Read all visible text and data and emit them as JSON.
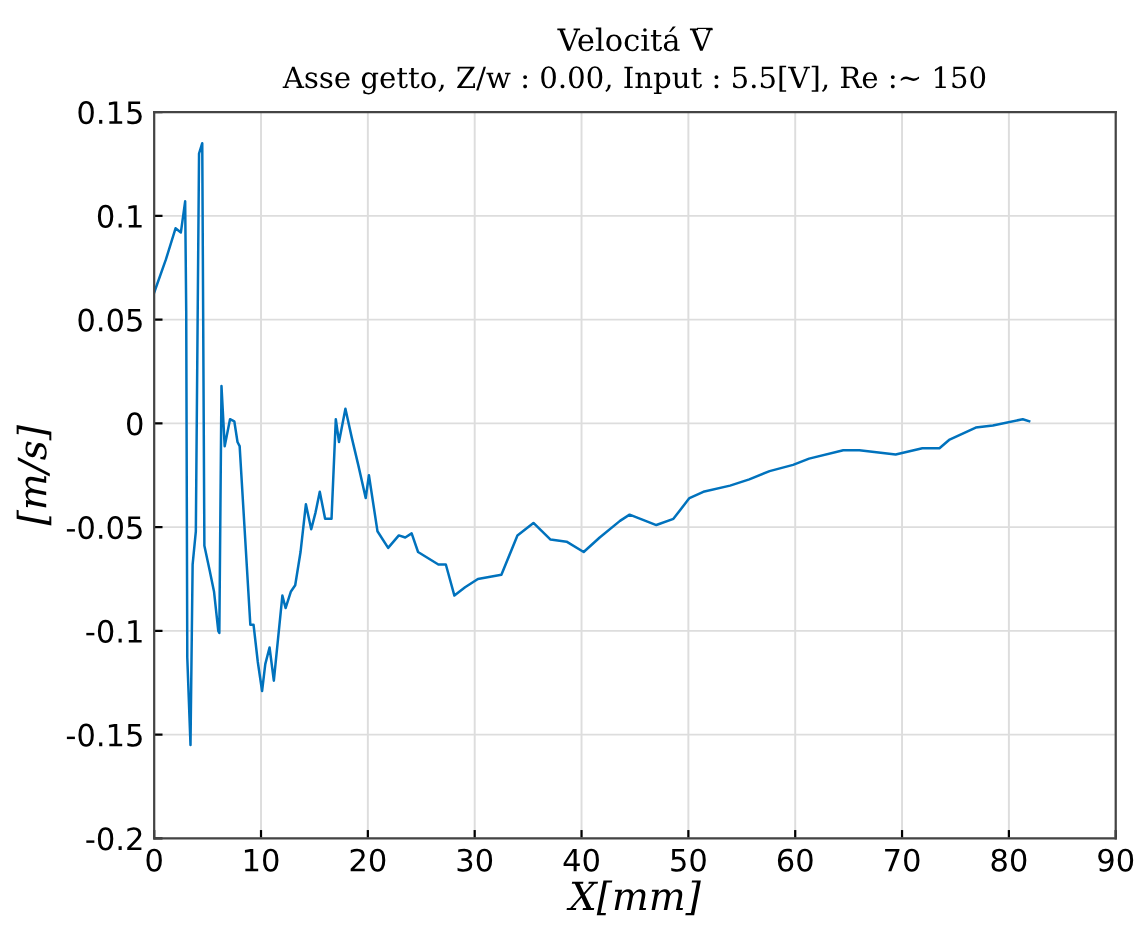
{
  "chart_data": {
    "type": "line",
    "title": "Velocitá V̅",
    "subtitle": "Asse getto, Z/w : 0.00, Input : 5.5[V], Re :∼ 150",
    "xlabel": "X[mm]",
    "ylabel": "[m/s]",
    "series": [
      {
        "color": "#0072bd",
        "x": [
          0,
          1.1,
          2.0,
          2.5,
          2.9,
          3.0,
          3.1,
          3.4,
          3.6,
          3.9,
          4.2,
          4.5,
          4.7,
          5.2,
          5.6,
          6.0,
          6.1,
          6.3,
          6.6,
          7.1,
          7.5,
          7.8,
          8.0,
          9.0,
          9.3,
          9.7,
          10.1,
          10.4,
          10.8,
          11.2,
          12.0,
          12.3,
          12.8,
          13.2,
          13.7,
          14.2,
          14.7,
          15.1,
          15.5,
          16.0,
          16.6,
          17.0,
          17.3,
          17.9,
          18.5,
          19.1,
          19.8,
          20.1,
          20.9,
          21.9,
          22.9,
          23.5,
          24.1,
          24.7,
          26.6,
          27.3,
          28.1,
          29.1,
          30.3,
          32.5,
          34.0,
          35.5,
          37.1,
          38.6,
          40.2,
          41.7,
          43.6,
          44.5,
          47.0,
          48.6,
          50.1,
          51.4,
          53.9,
          55.7,
          57.6,
          59.8,
          61.3,
          64.5,
          66.0,
          69.4,
          71.9,
          73.5,
          74.4,
          76.9,
          78.5,
          81.3,
          81.9
        ],
        "values": [
          0.063,
          0.079,
          0.094,
          0.092,
          0.107,
          0.054,
          -0.113,
          -0.155,
          -0.068,
          -0.052,
          0.13,
          0.135,
          -0.059,
          -0.071,
          -0.081,
          -0.1,
          -0.101,
          0.018,
          -0.011,
          0.002,
          0.001,
          -0.009,
          -0.011,
          -0.097,
          -0.097,
          -0.115,
          -0.129,
          -0.116,
          -0.108,
          -0.124,
          -0.083,
          -0.089,
          -0.081,
          -0.078,
          -0.062,
          -0.039,
          -0.051,
          -0.043,
          -0.033,
          -0.046,
          -0.046,
          0.002,
          -0.009,
          0.007,
          -0.007,
          -0.02,
          -0.036,
          -0.025,
          -0.052,
          -0.06,
          -0.054,
          -0.055,
          -0.053,
          -0.062,
          -0.068,
          -0.068,
          -0.083,
          -0.079,
          -0.075,
          -0.073,
          -0.054,
          -0.048,
          -0.056,
          -0.057,
          -0.062,
          -0.055,
          -0.047,
          -0.044,
          -0.049,
          -0.046,
          -0.036,
          -0.033,
          -0.03,
          -0.027,
          -0.023,
          -0.02,
          -0.017,
          -0.013,
          -0.013,
          -0.015,
          -0.012,
          -0.012,
          -0.008,
          -0.002,
          -0.001,
          0.002,
          0.001
        ]
      }
    ],
    "xlim": [
      0,
      90
    ],
    "xticks": [
      0,
      10,
      20,
      30,
      40,
      50,
      60,
      70,
      80,
      90
    ],
    "ylim": [
      -0.2,
      0.15
    ],
    "yticks": [
      -0.2,
      -0.15,
      -0.1,
      -0.05,
      0,
      0.05,
      0.1,
      0.15
    ],
    "grid": true
  }
}
